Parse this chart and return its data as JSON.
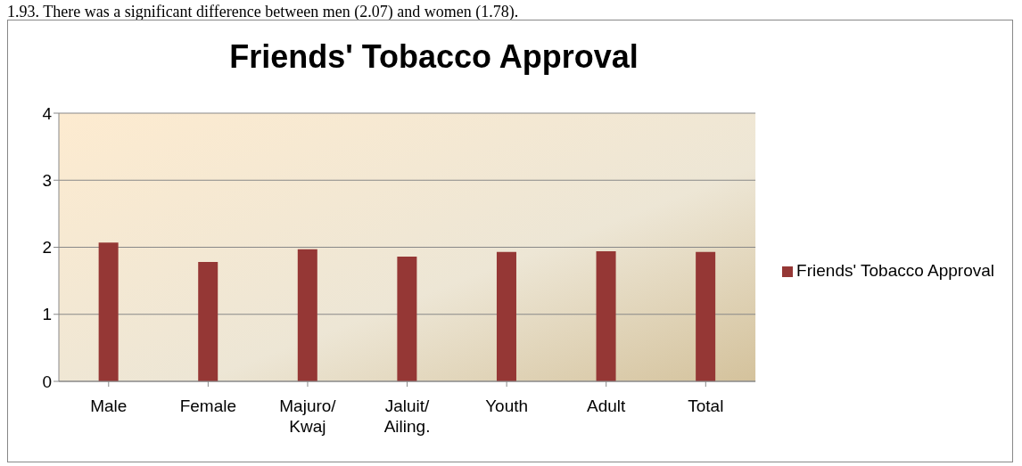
{
  "chart_data": {
    "type": "bar",
    "title": "Friends' Tobacco Approval",
    "annotations": [
      "1.93. There was a significant difference between men (2.07) and women (1.78)."
    ],
    "categories": [
      "Male",
      "Female",
      "Majuro/ Kwaj",
      "Jaluit/ Ailing.",
      "Youth",
      "Adult",
      "Total"
    ],
    "series": [
      {
        "name": "Friends' Tobacco Approval",
        "color": "#953735",
        "values": [
          2.07,
          1.78,
          1.97,
          1.86,
          1.93,
          1.94,
          1.93
        ]
      }
    ],
    "ylim": [
      0,
      4
    ],
    "yticks": [
      0,
      1,
      2,
      3,
      4
    ],
    "grid": "y",
    "legend": "right"
  }
}
